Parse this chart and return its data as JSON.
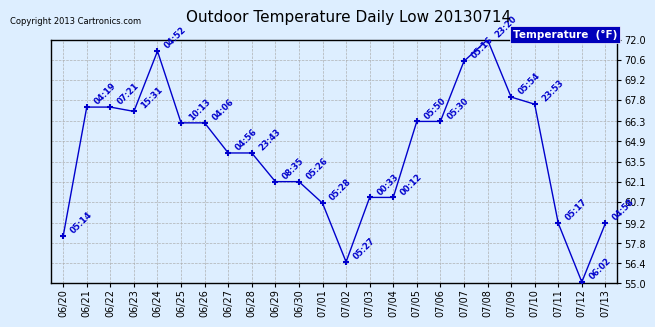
{
  "title": "Outdoor Temperature Daily Low 20130714",
  "legend_label": "Temperature  (°F)",
  "copyright": "Copyright 2013 Cartronics.com",
  "ylim": [
    55.0,
    72.0
  ],
  "yticks": [
    55.0,
    56.4,
    57.8,
    59.2,
    60.7,
    62.1,
    63.5,
    64.9,
    66.3,
    67.8,
    69.2,
    70.6,
    72.0
  ],
  "ytick_labels": [
    "55.0",
    "56.4",
    "57.8",
    "59.2",
    "60.7",
    "62.1",
    "63.5",
    "64.9",
    "66.3",
    "67.8",
    "69.2",
    "70.6",
    "72.0"
  ],
  "dates": [
    "06/20",
    "06/21",
    "06/22",
    "06/23",
    "06/24",
    "06/25",
    "06/26",
    "06/27",
    "06/28",
    "06/29",
    "06/30",
    "07/01",
    "07/02",
    "07/03",
    "07/04",
    "07/05",
    "07/06",
    "07/07",
    "07/08",
    "07/09",
    "07/10",
    "07/11",
    "07/12",
    "07/13"
  ],
  "values": [
    58.3,
    67.3,
    67.3,
    67.0,
    71.2,
    66.2,
    66.2,
    64.1,
    64.1,
    62.1,
    62.1,
    60.6,
    56.5,
    61.0,
    61.0,
    66.3,
    66.3,
    70.5,
    72.0,
    68.0,
    67.5,
    59.2,
    55.1,
    59.2
  ],
  "times": [
    "05:14",
    "04:19",
    "07:21",
    "15:31",
    "04:52",
    "10:13",
    "04:06",
    "04:56",
    "23:43",
    "08:35",
    "05:26",
    "05:28",
    "05:27",
    "00:33",
    "00:12",
    "05:50",
    "05:30",
    "05:16",
    "23:20",
    "05:54",
    "23:53",
    "05:17",
    "06:02",
    "04:58"
  ],
  "line_color": "#0000cc",
  "bg_color": "#ddeeff",
  "grid_color": "#aaaaaa",
  "text_color": "#0000cc",
  "legend_bg": "#0000bb",
  "legend_fg": "#ffffff",
  "title_fontsize": 11,
  "tick_fontsize": 7,
  "label_fontsize": 6,
  "copyright_fontsize": 6
}
